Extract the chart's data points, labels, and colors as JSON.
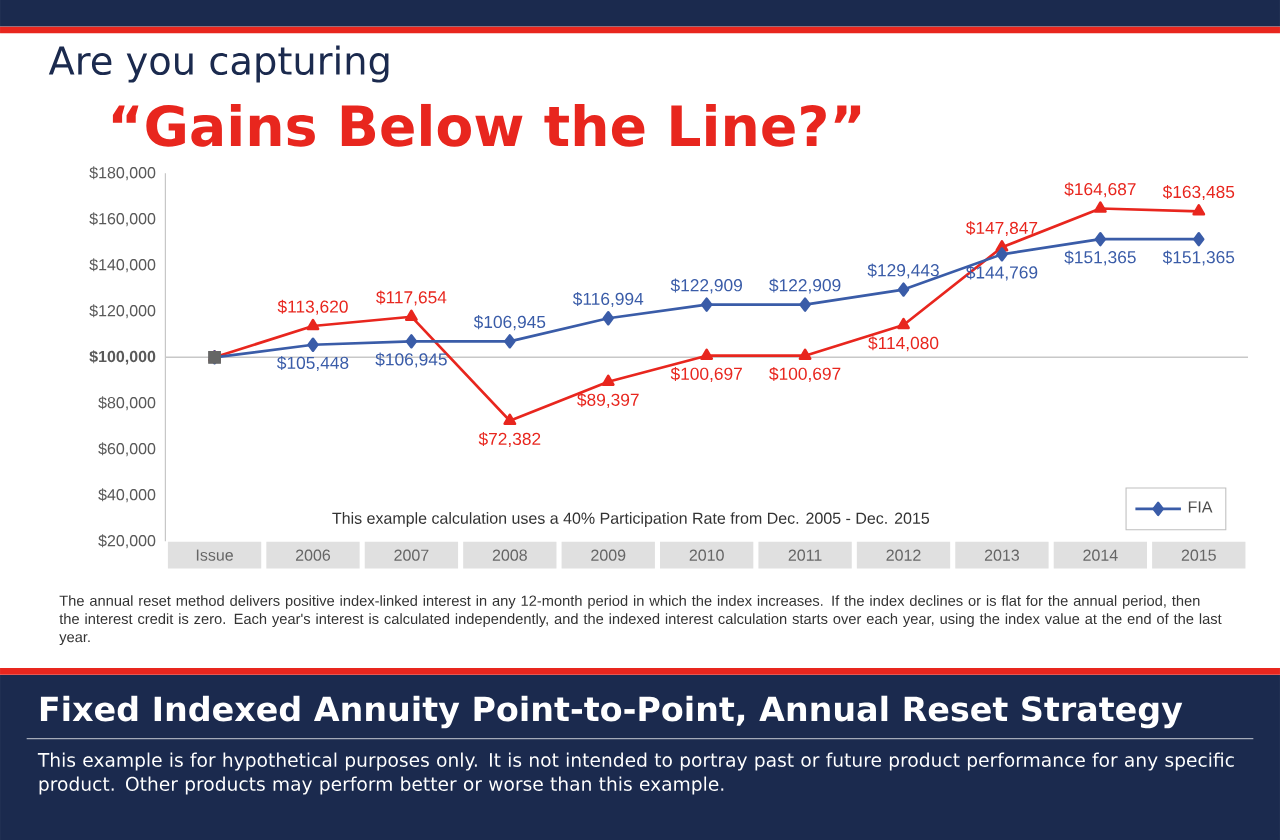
{
  "chart_data": {
    "type": "line",
    "title": "Are you capturing",
    "subtitle": "“Gains Below the Line?”",
    "categories": [
      "Issue",
      "2006",
      "2007",
      "2008",
      "2009",
      "2010",
      "2011",
      "2012",
      "2013",
      "2014",
      "2015"
    ],
    "series": [
      {
        "color": "#e8261e",
        "marker": "triangle",
        "values": [
          100000,
          113620,
          117654,
          72382,
          89397,
          100697,
          100697,
          114080,
          147847,
          164687,
          163485
        ],
        "value_labels": [
          null,
          "$113,620",
          "$117,654",
          "$72,382",
          "$89,397",
          "$100,697",
          "$100,697",
          "$114,080",
          "$147,847",
          "$164,687",
          "$163,485"
        ]
      },
      {
        "name": "FIA",
        "color": "#3a5ca8",
        "marker": "diamond",
        "values": [
          100000,
          105448,
          106945,
          106945,
          116994,
          122909,
          122909,
          129443,
          144769,
          151365,
          151365
        ],
        "value_labels": [
          null,
          "$105,448",
          "$106,945",
          "$106,945",
          "$116,994",
          "$122,909",
          "$122,909",
          "$129,443",
          "$144,769",
          "$151,365",
          "$151,365"
        ]
      },
      {
        "type": "scatter",
        "color": "#666666",
        "marker": "square",
        "values": [
          100000,
          null,
          null,
          null,
          null,
          null,
          null,
          null,
          null,
          null,
          null
        ]
      }
    ],
    "ylim": [
      20000,
      180000
    ],
    "yticks": [
      {
        "value": 20000,
        "label": "$20,000"
      },
      {
        "value": 40000,
        "label": "$40,000"
      },
      {
        "value": 60000,
        "label": "$60,000"
      },
      {
        "value": 80000,
        "label": "$80,000"
      },
      {
        "value": 100000,
        "label": "$100,000"
      },
      {
        "value": 120000,
        "label": "$120,000"
      },
      {
        "value": 140000,
        "label": "$140,000"
      },
      {
        "value": 160000,
        "label": "$160,000"
      },
      {
        "value": 180000,
        "label": "$180,000"
      }
    ],
    "ref_lines": [
      {
        "axis": "y",
        "value": 100000,
        "color": "#c8c8c8"
      }
    ],
    "legend": "bottom right",
    "annotations": [
      "This example calculation uses a 40% Participation Rate from Dec. 2005 - Dec. 2015",
      "The annual reset method delivers positive index-linked interest in any 12-month period in which the index increases. If the index declines or is flat for the annual period, then the interest credit is zero. Each year's interest is calculated independently, and the indexed interest calculation starts over each year, using the index value at the end of the last year.",
      "Fixed Indexed Annuity Point-to-Point, Annual Reset Strategy",
      "This example is for hypothetical purposes only. It is not intended to portray past or future product performance for any specific product. Other products may perform better or worse than this example."
    ]
  }
}
